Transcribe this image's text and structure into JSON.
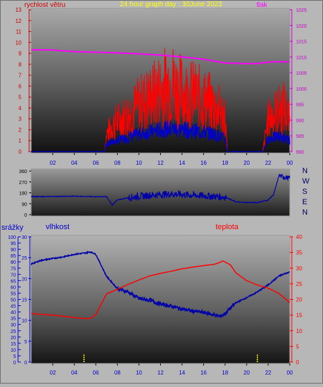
{
  "header": {
    "title": "24 hour graph day : 30June 2023",
    "left_label": "rychlost větru",
    "right_label": "tlak"
  },
  "colors": {
    "wind": "#ff0000",
    "gust": "#0000cc",
    "pressure": "#ff00ff",
    "direction": "#0000aa",
    "humidity": "#0000aa",
    "temperature": "#ff0000",
    "rain": "#ffff00",
    "title": "#ffff00",
    "bottom_axis_labels": "#0000cc"
  },
  "chart_data": [
    {
      "type": "line",
      "id": "wind-pressure",
      "left_axis": {
        "label": "rychlost větru",
        "ylim": [
          0,
          13
        ],
        "ticks": [
          0,
          1,
          2,
          3,
          4,
          5,
          6,
          7,
          8,
          9,
          10,
          11,
          12,
          13
        ]
      },
      "right_axis": {
        "label": "tlak",
        "ylim": [
          980,
          1025
        ],
        "ticks": [
          980,
          985,
          990,
          995,
          1000,
          1005,
          1010,
          1015,
          1020,
          1025
        ]
      },
      "x_ticks": [
        "02",
        "04",
        "06",
        "08",
        "10",
        "12",
        "14",
        "16",
        "18",
        "20",
        "22",
        "00"
      ],
      "series": [
        {
          "key": "wind",
          "axis": "left",
          "x": [
            0,
            6,
            6.8,
            7,
            7.5,
            8,
            8.5,
            9,
            9.5,
            10,
            10.5,
            11,
            11.5,
            12,
            12.5,
            13,
            13.5,
            14,
            14.5,
            15,
            15.5,
            16,
            16.5,
            17,
            17.5,
            18,
            18.2,
            19,
            20,
            21,
            21.5,
            22,
            22.5,
            23,
            23.5,
            24
          ],
          "y": [
            0,
            0,
            0,
            1.5,
            2.2,
            2.6,
            2.9,
            3.2,
            3.6,
            4.0,
            4.3,
            4.6,
            4.9,
            5.3,
            5.6,
            6.0,
            5.4,
            5.1,
            4.9,
            4.8,
            4.6,
            4.4,
            4.2,
            3.9,
            3.5,
            3.0,
            0,
            0,
            0,
            0,
            0,
            2.8,
            3.2,
            3.5,
            3.8,
            2.5
          ]
        },
        {
          "key": "gust",
          "axis": "left",
          "x": [
            0,
            6,
            6.8,
            7,
            8,
            9,
            10,
            11,
            12,
            13,
            14,
            15,
            16,
            17,
            18,
            18.2,
            19,
            20,
            21,
            21.5,
            22,
            23,
            24
          ],
          "y": [
            0,
            0,
            0,
            0.7,
            1.0,
            1.3,
            1.6,
            1.8,
            2.0,
            2.1,
            2.0,
            1.9,
            1.8,
            1.6,
            1.2,
            0,
            0,
            0,
            0,
            0,
            1.2,
            1.4,
            1.0
          ]
        },
        {
          "key": "pressure",
          "axis": "right",
          "x": [
            0,
            2,
            4,
            6,
            8,
            10,
            12,
            14,
            16,
            18,
            19,
            20,
            21,
            22,
            23,
            24
          ],
          "y": [
            1012.3,
            1012.2,
            1011.7,
            1011.5,
            1011.3,
            1011.0,
            1010.6,
            1010.0,
            1009.3,
            1008.1,
            1008.0,
            1007.9,
            1007.9,
            1008.4,
            1008.5,
            1008.5
          ]
        }
      ]
    },
    {
      "type": "line",
      "id": "wind-direction",
      "left_axis": {
        "ylim": [
          0,
          360
        ],
        "ticks": [
          0,
          90,
          180,
          270,
          360
        ]
      },
      "compass_labels": [
        "N",
        "W",
        "S",
        "E",
        "N"
      ],
      "series": [
        {
          "key": "direction",
          "x": [
            0,
            1,
            2,
            3,
            4,
            5,
            6,
            7,
            7.5,
            8,
            9,
            10,
            11,
            12,
            13,
            14,
            15,
            16,
            17,
            18,
            19,
            20,
            21,
            22,
            22.5,
            23,
            23.5,
            24
          ],
          "y": [
            150,
            148,
            150,
            150,
            152,
            150,
            148,
            148,
            80,
            120,
            140,
            150,
            160,
            165,
            170,
            165,
            160,
            155,
            150,
            145,
            105,
            100,
            100,
            120,
            165,
            320,
            310,
            300
          ]
        }
      ]
    },
    {
      "type": "line",
      "id": "rain-humidity-temperature",
      "labels": {
        "rain": "srážky",
        "humidity": "vlhkost",
        "temperature": "teplota"
      },
      "axis_rain": {
        "ylim": [
          0,
          100
        ],
        "ticks": [
          0,
          5,
          10,
          15,
          20,
          25,
          30,
          35,
          40,
          45,
          50,
          55,
          60,
          65,
          70,
          75,
          80,
          85,
          90,
          95,
          100
        ]
      },
      "axis_humidity": {
        "ylim": [
          0,
          30
        ],
        "ticks": [
          0,
          5,
          10,
          15,
          20,
          25,
          30
        ]
      },
      "axis_temperature": {
        "ylim": [
          0,
          40
        ],
        "ticks": [
          0,
          5,
          10,
          15,
          20,
          25,
          30,
          35,
          40
        ]
      },
      "x_ticks": [
        "02",
        "04",
        "06",
        "08",
        "10",
        "12",
        "14",
        "16",
        "18",
        "20",
        "22",
        "00"
      ],
      "series": [
        {
          "key": "humidity",
          "axis": "humidity",
          "x": [
            0,
            1,
            2,
            3,
            4,
            5,
            5.5,
            6,
            7,
            8,
            9,
            10,
            11,
            12,
            13,
            14,
            15,
            16,
            17,
            17.5,
            18,
            19,
            20,
            21,
            22,
            23,
            24
          ],
          "y": [
            23.5,
            24.4,
            24.8,
            25.2,
            25.8,
            26.1,
            26.4,
            25.8,
            20.5,
            17.6,
            16.8,
            15.2,
            14.8,
            13.9,
            13.4,
            12.7,
            12.2,
            11.9,
            11.3,
            10.9,
            11.6,
            14.2,
            15.4,
            16.8,
            18.5,
            20.6,
            21.6
          ]
        },
        {
          "key": "temperature",
          "axis": "temperature",
          "x": [
            0,
            1,
            2,
            3,
            4,
            5,
            5.5,
            6,
            6.5,
            7,
            8,
            9,
            10,
            11,
            12,
            13,
            14,
            15,
            16,
            17,
            17.5,
            17.8,
            18.5,
            19,
            20,
            21,
            22,
            23,
            24
          ],
          "y": [
            15.5,
            15.2,
            15.0,
            14.6,
            14.2,
            13.9,
            14.0,
            15.2,
            18.5,
            21.8,
            23.2,
            24.8,
            26.2,
            27.5,
            28.3,
            29.0,
            29.8,
            30.3,
            30.8,
            31.2,
            31.8,
            32.3,
            31.0,
            28.5,
            26.0,
            24.6,
            23.6,
            21.9,
            19.0
          ]
        },
        {
          "key": "rain",
          "axis": "rain",
          "x": [
            4.9,
            21.0
          ],
          "y": [
            6,
            6
          ]
        }
      ]
    }
  ]
}
